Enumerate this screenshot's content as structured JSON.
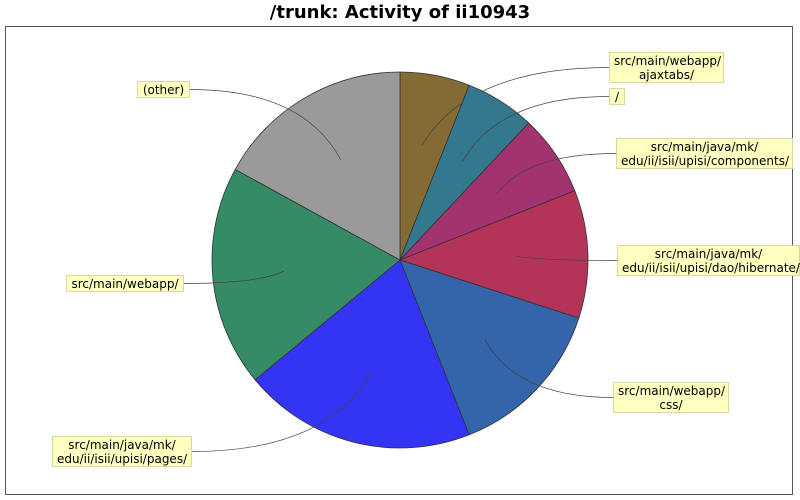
{
  "chart_data": {
    "type": "pie",
    "title": "/trunk: Activity of ii10943",
    "slices": [
      {
        "label": "src/main/webapp/\najaxtabs/",
        "value": 6.0,
        "color": "#836b33"
      },
      {
        "label": "/",
        "value": 6.0,
        "color": "#34788e"
      },
      {
        "label": "src/main/java/mk/\nedu/ii/isii/upisi/components/",
        "value": 7.0,
        "color": "#a2336e"
      },
      {
        "label": "src/main/java/mk/\nedu/ii/isii/upisi/dao/hibernate/",
        "value": 11.0,
        "color": "#b43459"
      },
      {
        "label": "src/main/webapp/\ncss/",
        "value": 14.0,
        "color": "#3465aa"
      },
      {
        "label": "src/main/java/mk/\nedu/ii/isii/upisi/pages/",
        "value": 20.0,
        "color": "#3434f5"
      },
      {
        "label": "src/main/webapp/",
        "value": 19.0,
        "color": "#348b65"
      },
      {
        "label": "(other)",
        "value": 17.0,
        "color": "#9a9a9a"
      }
    ]
  }
}
